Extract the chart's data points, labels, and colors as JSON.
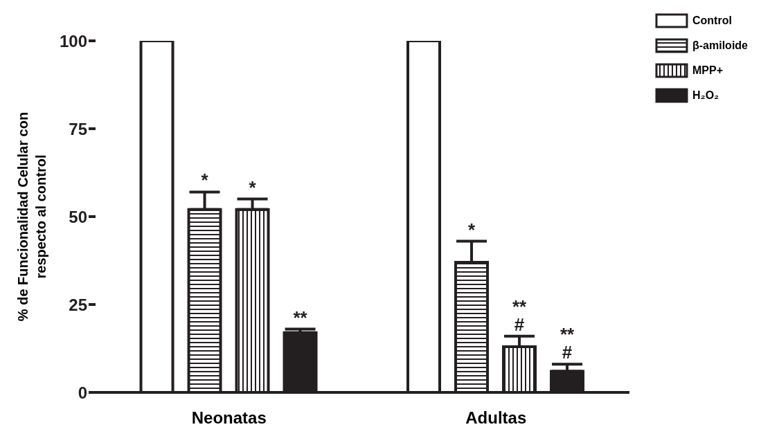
{
  "chart_data": {
    "type": "bar",
    "ylabel": "% de Funcionalidad Celular con respecto al control",
    "categories": [
      "Neonatas",
      "Adultas"
    ],
    "series": [
      {
        "name": "Control",
        "color": "#ffffff",
        "values": [
          100,
          100
        ],
        "errors": [
          null,
          null
        ]
      },
      {
        "name": "β-amiloide",
        "color": "#231f20",
        "values": [
          52,
          37
        ],
        "errors": [
          [
            52,
            57
          ],
          [
            37,
            43
          ]
        ],
        "value_labels": [
          "*",
          "*"
        ]
      },
      {
        "name": "MPP+",
        "color": "#231f20",
        "values": [
          52,
          13
        ],
        "errors": [
          [
            52,
            55
          ],
          [
            13,
            16
          ]
        ],
        "value_labels": [
          "*",
          "**\n#"
        ]
      },
      {
        "name": "H₂O₂",
        "color": "#231f20",
        "values": [
          17,
          6
        ],
        "errors": [
          [
            17,
            18
          ],
          [
            6,
            8
          ]
        ],
        "value_labels": [
          "**",
          "**\n#"
        ]
      }
    ],
    "ylim": [
      0,
      100
    ],
    "yticks": [
      0,
      25,
      50,
      75,
      100
    ],
    "grid": false,
    "legend": "top right"
  }
}
